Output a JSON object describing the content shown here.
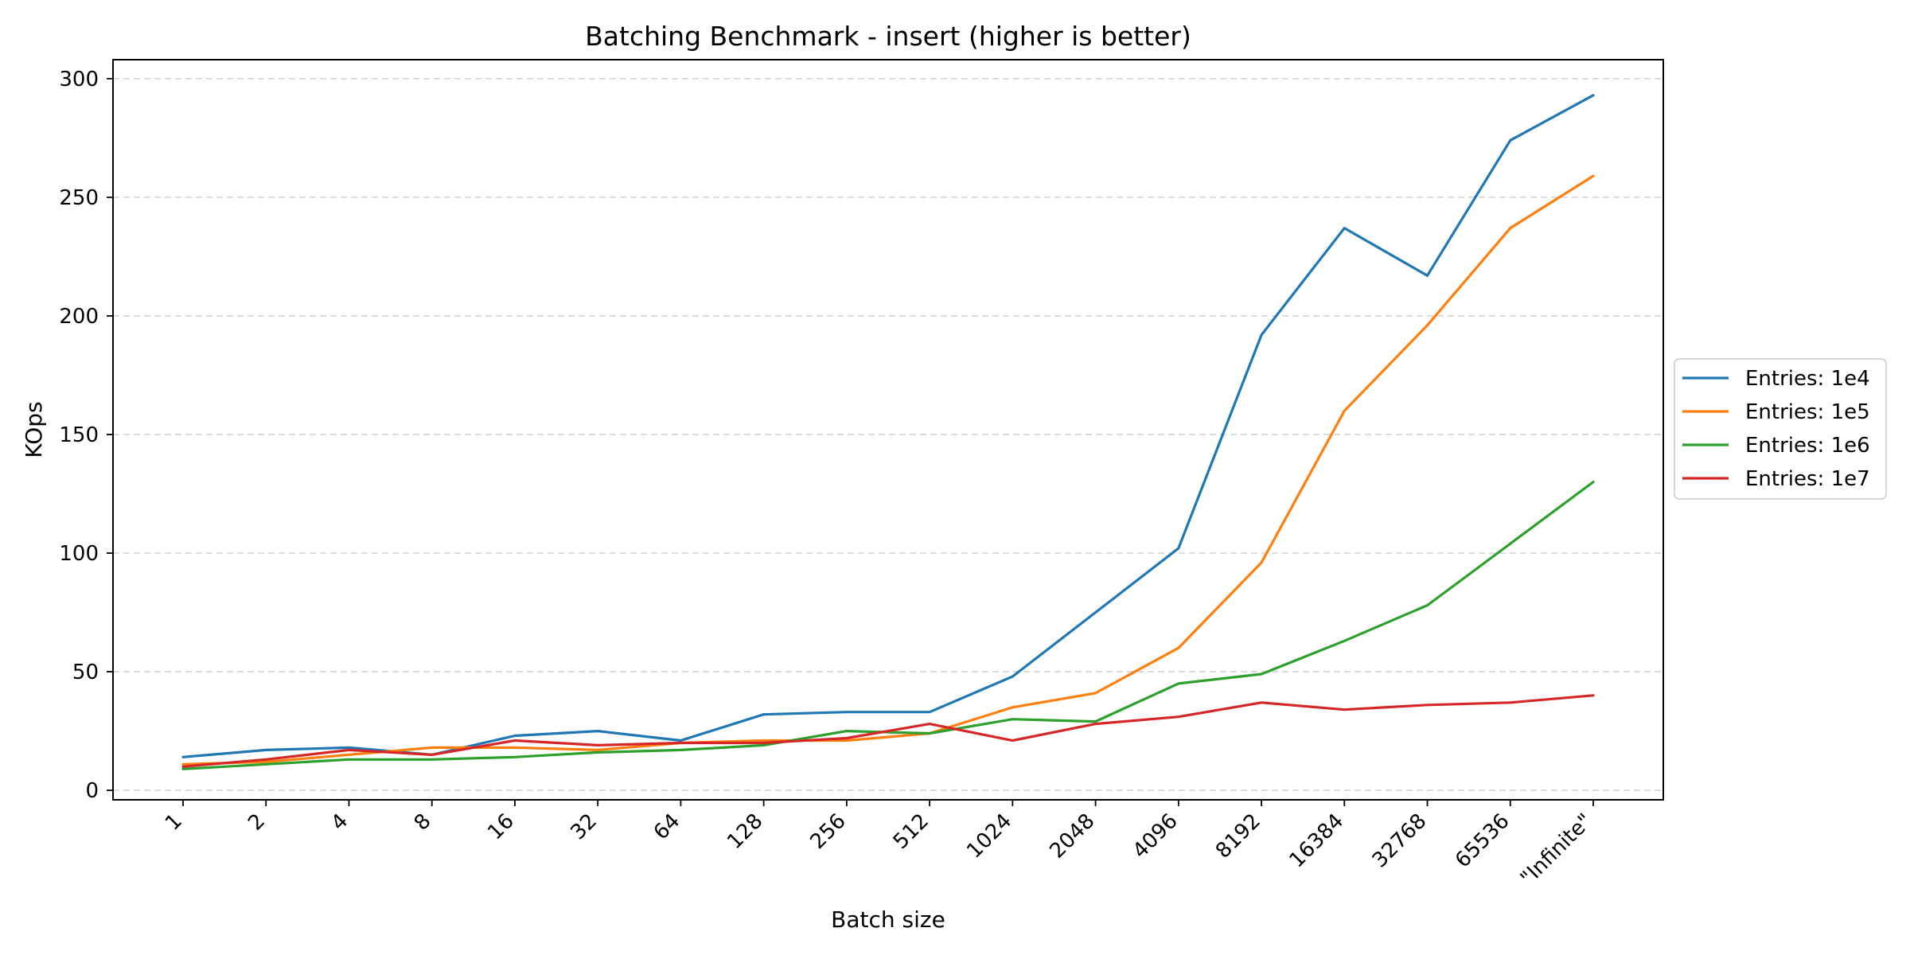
{
  "chart_data": {
    "type": "line",
    "title": "Batching Benchmark - insert (higher is better)",
    "xlabel": "Batch size",
    "ylabel": "KOps",
    "categories": [
      "1",
      "2",
      "4",
      "8",
      "16",
      "32",
      "64",
      "128",
      "256",
      "512",
      "1024",
      "2048",
      "4096",
      "8192",
      "16384",
      "32768",
      "65536",
      "\"Infinite\""
    ],
    "yticks": [
      0,
      50,
      100,
      150,
      200,
      250,
      300
    ],
    "ylim": [
      -4,
      308
    ],
    "grid": "horizontal-dashed",
    "legend_position": "center-right-outside",
    "series": [
      {
        "name": "Entries: 1e4",
        "color": "#1f77b4",
        "values": [
          14,
          17,
          18,
          15,
          23,
          25,
          21,
          32,
          33,
          33,
          48,
          75,
          102,
          192,
          237,
          217,
          274,
          293
        ]
      },
      {
        "name": "Entries: 1e5",
        "color": "#ff7f0e",
        "values": [
          11,
          12,
          15,
          18,
          18,
          17,
          20,
          21,
          21,
          24,
          35,
          41,
          60,
          96,
          160,
          196,
          237,
          259
        ]
      },
      {
        "name": "Entries: 1e6",
        "color": "#2ca02c",
        "values": [
          9,
          11,
          13,
          13,
          14,
          16,
          17,
          19,
          25,
          24,
          30,
          29,
          45,
          49,
          63,
          78,
          104,
          130
        ]
      },
      {
        "name": "Entries: 1e7",
        "color": "#d62728",
        "values": [
          10,
          13,
          17,
          15,
          21,
          19,
          20,
          20,
          22,
          28,
          21,
          28,
          31,
          37,
          34,
          36,
          37,
          40
        ]
      }
    ]
  }
}
